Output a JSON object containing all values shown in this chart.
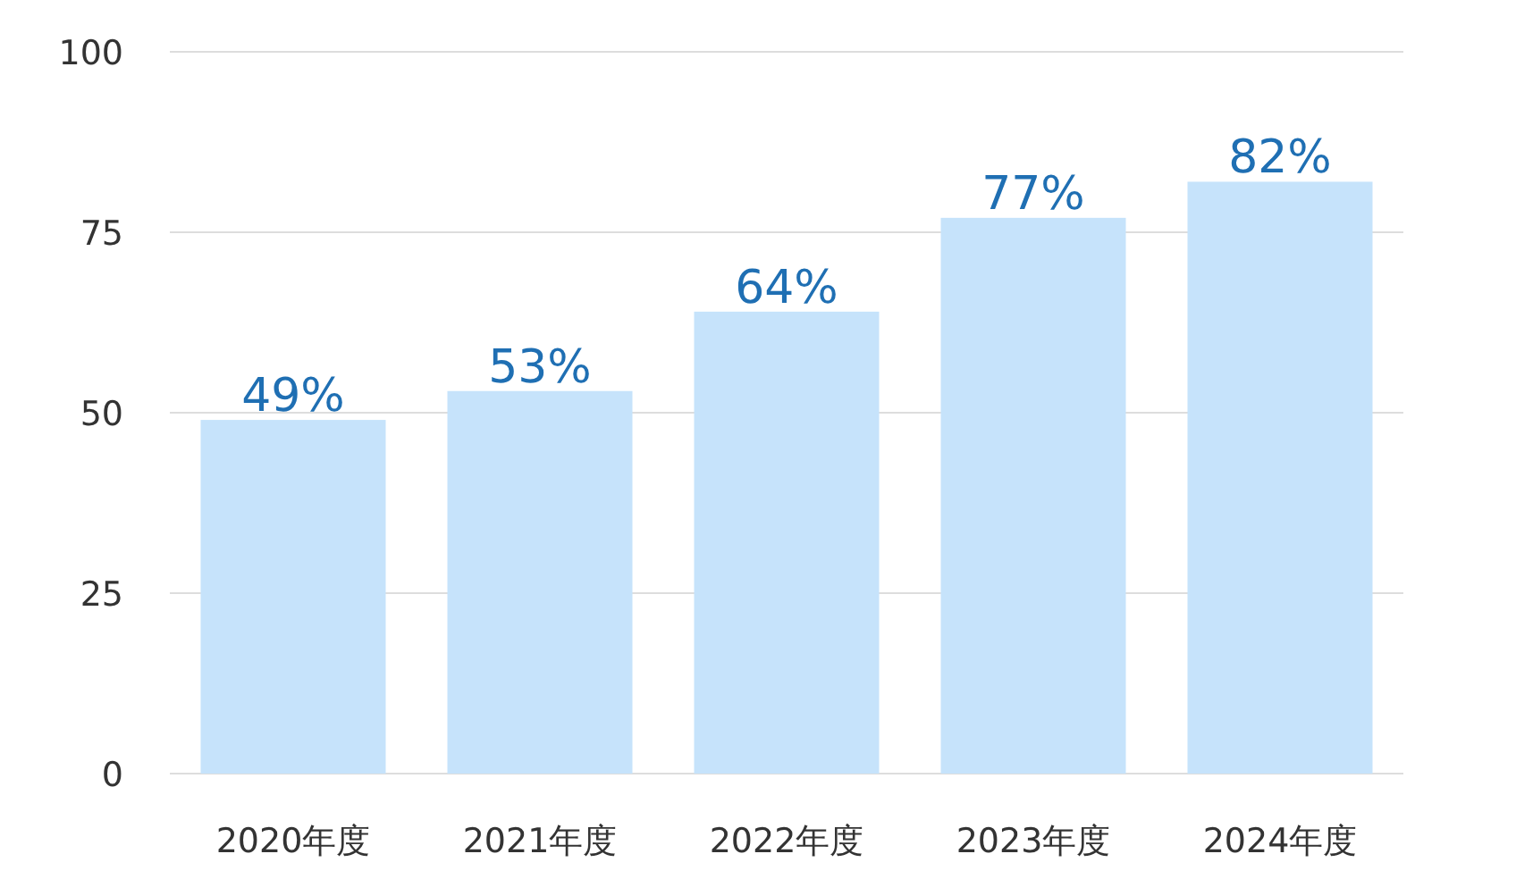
{
  "chart_data": {
    "type": "bar",
    "categories": [
      "2020年度",
      "2021年度",
      "2022年度",
      "2023年度",
      "2024年度"
    ],
    "values": [
      49,
      53,
      64,
      77,
      82
    ],
    "value_labels": [
      "49%",
      "53%",
      "64%",
      "77%",
      "82%"
    ],
    "color": "#c6e3fb",
    "ylim": [
      0,
      100
    ],
    "yticks": [
      0,
      25,
      50,
      75,
      100
    ],
    "grid": "y"
  }
}
